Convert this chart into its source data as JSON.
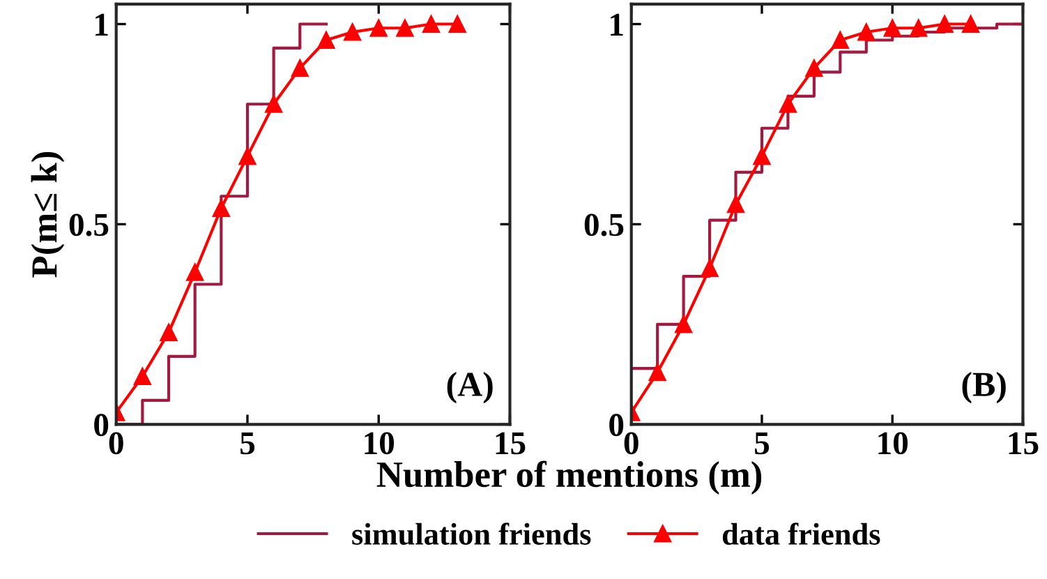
{
  "chart_data": [
    {
      "type": "line",
      "xlabel": "Number of mentions (m)",
      "ylabel": "P(m≤ k)",
      "annotations": [
        "(A)"
      ],
      "xlim": [
        0,
        15
      ],
      "ylim": [
        0,
        1.05
      ],
      "xticks": [
        0,
        5,
        10,
        15
      ],
      "yticks": [
        0,
        0.5,
        1
      ],
      "grid": false,
      "legend": "bottom",
      "marker": "triangle",
      "line_style": "solid",
      "series": [
        {
          "name": "simulation friends",
          "type": "step",
          "marker": "none",
          "color": "#a3193f",
          "x": [
            0,
            1,
            2,
            3,
            4,
            5,
            6,
            7,
            8
          ],
          "values": [
            0.0,
            0.06,
            0.17,
            0.35,
            0.57,
            0.8,
            0.94,
            1.0,
            1.0
          ]
        },
        {
          "name": "data friends",
          "color": "#ff0000",
          "x": [
            0,
            1,
            2,
            3,
            4,
            5,
            6,
            7,
            8,
            9,
            10,
            11,
            12,
            13
          ],
          "values": [
            0.03,
            0.12,
            0.23,
            0.38,
            0.54,
            0.67,
            0.8,
            0.89,
            0.96,
            0.98,
            0.99,
            0.99,
            1.0,
            1.0
          ]
        }
      ]
    },
    {
      "type": "line",
      "annotations": [
        "(B)"
      ],
      "xlim": [
        0,
        15
      ],
      "ylim": [
        0,
        1.05
      ],
      "xticks": [
        0,
        5,
        10,
        15
      ],
      "yticks": [
        0,
        0.5,
        1
      ],
      "grid": false,
      "marker": "triangle",
      "line_style": "solid",
      "series": [
        {
          "type": "step",
          "marker": "none",
          "color": "#a3193f",
          "x": [
            0,
            1,
            2,
            3,
            4,
            5,
            6,
            7,
            8,
            9,
            10,
            11,
            12,
            13,
            14,
            15
          ],
          "values": [
            0.14,
            0.25,
            0.37,
            0.51,
            0.63,
            0.74,
            0.82,
            0.88,
            0.93,
            0.96,
            0.97,
            0.98,
            0.99,
            0.99,
            1.0,
            1.0
          ]
        },
        {
          "color": "#ff0000",
          "x": [
            0,
            1,
            2,
            3,
            4,
            5,
            6,
            7,
            8,
            9,
            10,
            11,
            12,
            13
          ],
          "values": [
            0.03,
            0.13,
            0.25,
            0.39,
            0.55,
            0.67,
            0.8,
            0.89,
            0.96,
            0.98,
            0.99,
            0.99,
            1.0,
            1.0
          ]
        }
      ]
    }
  ]
}
